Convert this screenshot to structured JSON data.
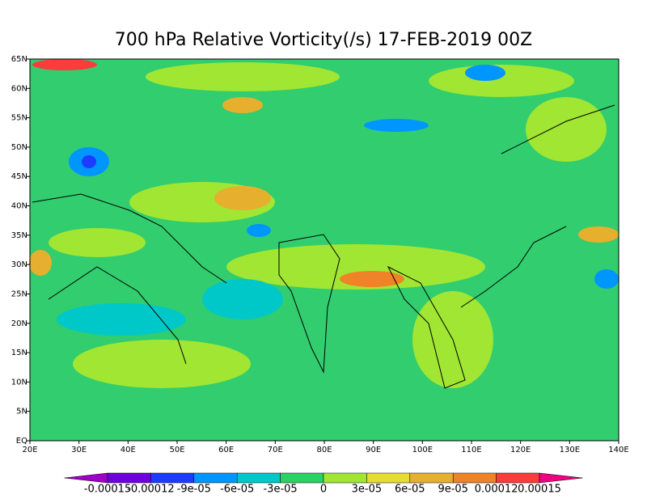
{
  "title": "700 hPa Relative Vorticity(/s) 17-FEB-2019 00Z",
  "map": {
    "xlim": [
      20,
      140
    ],
    "ylim": [
      0,
      65
    ],
    "xticks": [
      {
        "value": 20,
        "label": "20E"
      },
      {
        "value": 30,
        "label": "30E"
      },
      {
        "value": 40,
        "label": "40E"
      },
      {
        "value": 50,
        "label": "50E"
      },
      {
        "value": 60,
        "label": "60E"
      },
      {
        "value": 70,
        "label": "70E"
      },
      {
        "value": 80,
        "label": "80E"
      },
      {
        "value": 90,
        "label": "90E"
      },
      {
        "value": 100,
        "label": "100E"
      },
      {
        "value": 110,
        "label": "110E"
      },
      {
        "value": 120,
        "label": "120E"
      },
      {
        "value": 130,
        "label": "130E"
      },
      {
        "value": 140,
        "label": "140E"
      }
    ],
    "yticks": [
      {
        "value": 0,
        "label": "EQ"
      },
      {
        "value": 5,
        "label": "5N"
      },
      {
        "value": 10,
        "label": "10N"
      },
      {
        "value": 15,
        "label": "15N"
      },
      {
        "value": 20,
        "label": "20N"
      },
      {
        "value": 25,
        "label": "25N"
      },
      {
        "value": 30,
        "label": "30N"
      },
      {
        "value": 35,
        "label": "35N"
      },
      {
        "value": 40,
        "label": "40N"
      },
      {
        "value": 45,
        "label": "45N"
      },
      {
        "value": 50,
        "label": "50N"
      },
      {
        "value": 55,
        "label": "55N"
      },
      {
        "value": 60,
        "label": "60N"
      },
      {
        "value": 65,
        "label": "65N"
      }
    ]
  },
  "colorbar": {
    "ticks": [
      {
        "value": -0.00015,
        "label": "-0.00015"
      },
      {
        "value": -0.00012,
        "label": "-0.00012"
      },
      {
        "value": -9e-05,
        "label": "-9e-05"
      },
      {
        "value": -6e-05,
        "label": "-6e-05"
      },
      {
        "value": -3e-05,
        "label": "-3e-05"
      },
      {
        "value": 0,
        "label": "0"
      },
      {
        "value": 3e-05,
        "label": "3e-05"
      },
      {
        "value": 6e-05,
        "label": "6e-05"
      },
      {
        "value": 9e-05,
        "label": "9e-05"
      },
      {
        "value": 0.00012,
        "label": "0.00012"
      },
      {
        "value": 0.00015,
        "label": "0.00015"
      }
    ],
    "colors": [
      "#a000c8",
      "#6e00dc",
      "#1e3cff",
      "#0096ff",
      "#00c8c8",
      "#28d264",
      "#a0e632",
      "#e6dc32",
      "#e6af2d",
      "#f08228",
      "#fa3c3c",
      "#f00082"
    ]
  }
}
